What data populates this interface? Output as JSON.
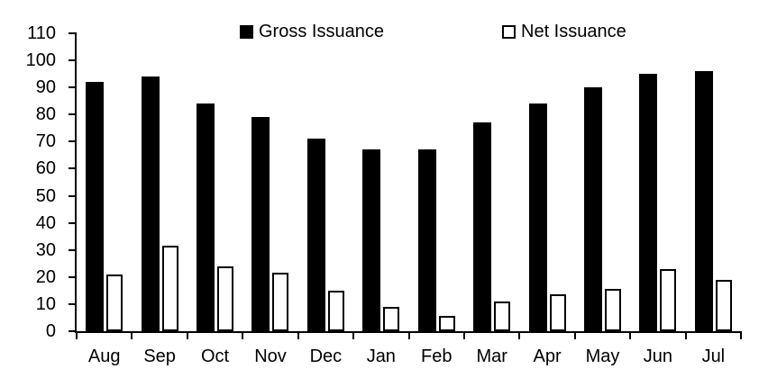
{
  "chart_data": {
    "type": "bar",
    "title": "",
    "xlabel": "",
    "ylabel": "",
    "categories": [
      "Aug",
      "Sep",
      "Oct",
      "Nov",
      "Dec",
      "Jan",
      "Feb",
      "Mar",
      "Apr",
      "May",
      "Jun",
      "Jul"
    ],
    "series": [
      {
        "name": "Gross Issuance",
        "fill_color": "#000000",
        "border_color": "#000000",
        "values": [
          92,
          94,
          84,
          79,
          71,
          67,
          67,
          77,
          84,
          90,
          95,
          96
        ]
      },
      {
        "name": "Net Issuance",
        "fill_color": "#ffffff",
        "border_color": "#000000",
        "values": [
          21,
          31.5,
          24,
          21.5,
          15,
          9,
          5.5,
          11,
          13.5,
          15.5,
          23,
          19
        ]
      }
    ],
    "ylim": [
      0,
      110
    ],
    "ytick_step": 10,
    "yticks": [
      0,
      10,
      20,
      30,
      40,
      50,
      60,
      70,
      80,
      90,
      100,
      110
    ],
    "grid": false,
    "legend_position": "top",
    "axis_color": "#000000",
    "background_color": "#ffffff"
  }
}
